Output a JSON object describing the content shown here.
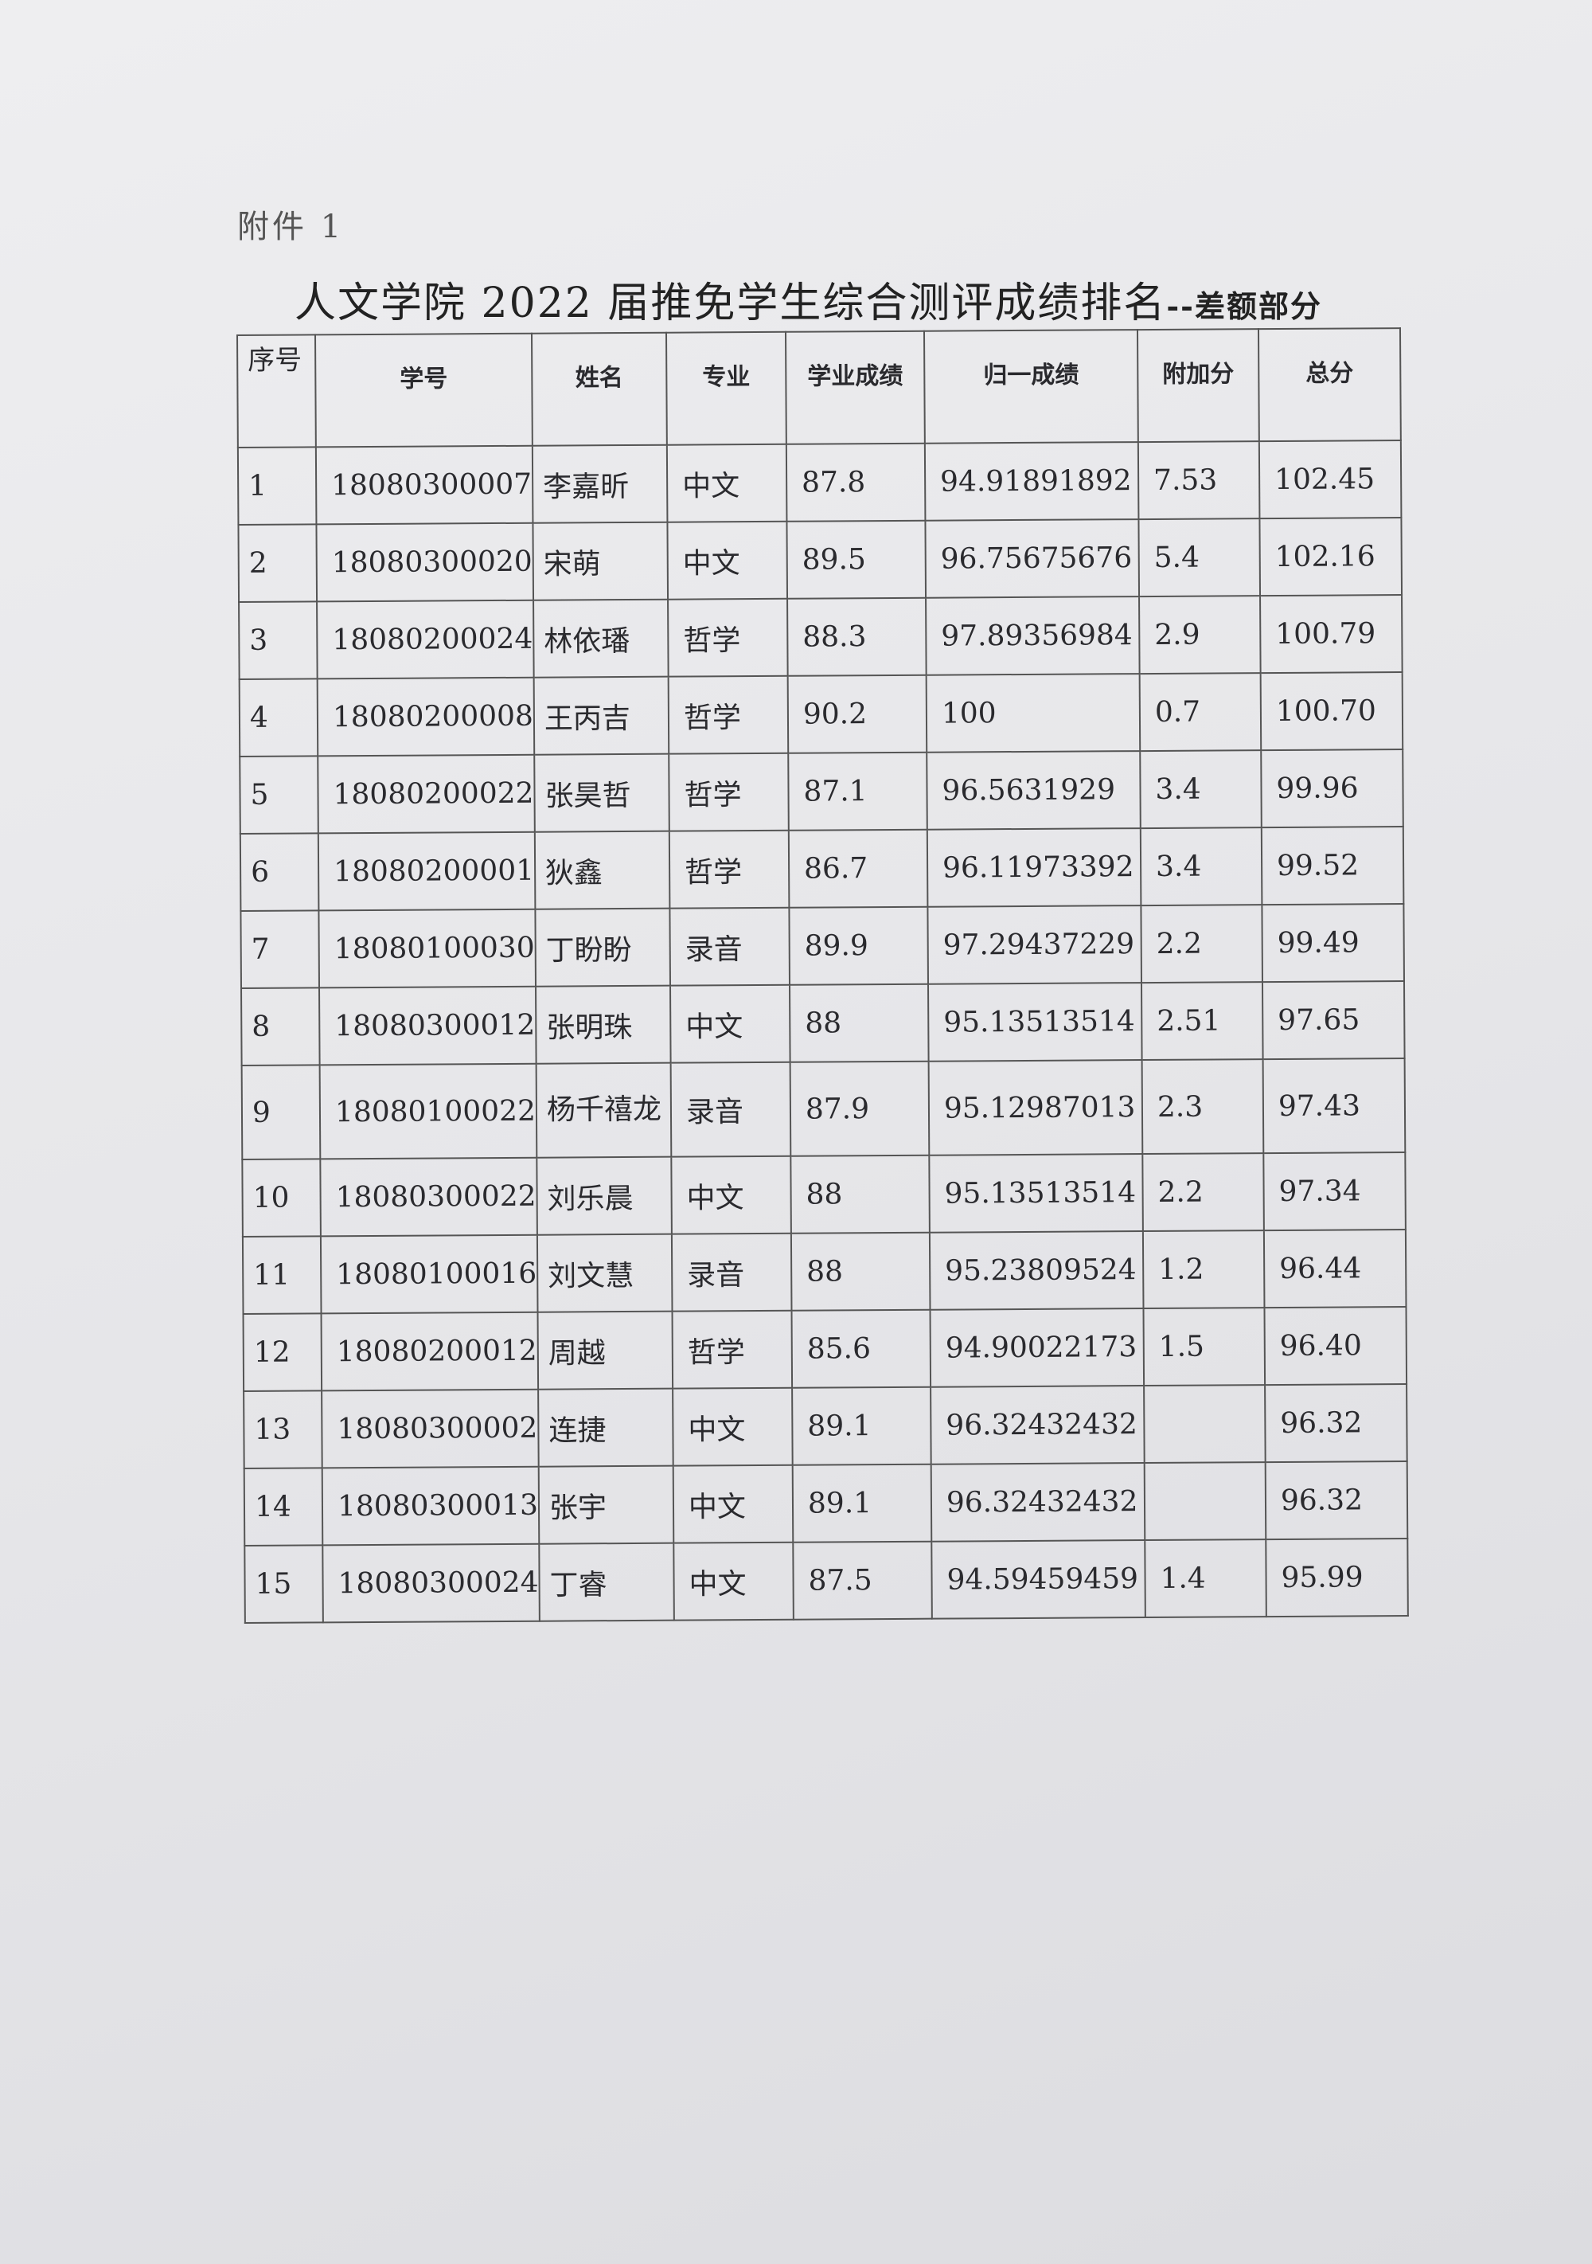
{
  "attachment_label": "附件 1",
  "title": "人文学院 2022 届推免学生综合测评成绩排名",
  "subtitle": "--差额部分",
  "table": {
    "headers": [
      "序号",
      "学号",
      "姓名",
      "专业",
      "学业成绩",
      "归一成绩",
      "附加分",
      "总分"
    ],
    "rows": [
      [
        "1",
        "18080300007",
        "李嘉昕",
        "中文",
        "87.8",
        "94.91891892",
        "7.53",
        "102.45"
      ],
      [
        "2",
        "18080300020",
        "宋萌",
        "中文",
        "89.5",
        "96.75675676",
        "5.4",
        "102.16"
      ],
      [
        "3",
        "18080200024",
        "林依璠",
        "哲学",
        "88.3",
        "97.89356984",
        "2.9",
        "100.79"
      ],
      [
        "4",
        "18080200008",
        "王丙吉",
        "哲学",
        "90.2",
        "100",
        "0.7",
        "100.70"
      ],
      [
        "5",
        "18080200022",
        "张昊哲",
        "哲学",
        "87.1",
        "96.5631929",
        "3.4",
        "99.96"
      ],
      [
        "6",
        "18080200001",
        "狄鑫",
        "哲学",
        "86.7",
        "96.11973392",
        "3.4",
        "99.52"
      ],
      [
        "7",
        "18080100030",
        "丁盼盼",
        "录音",
        "89.9",
        "97.29437229",
        "2.2",
        "99.49"
      ],
      [
        "8",
        "18080300012",
        "张明珠",
        "中文",
        "88",
        "95.13513514",
        "2.51",
        "97.65"
      ],
      [
        "9",
        "18080100022",
        "杨千禧龙",
        "录音",
        "87.9",
        "95.12987013",
        "2.3",
        "97.43"
      ],
      [
        "10",
        "18080300022",
        "刘乐晨",
        "中文",
        "88",
        "95.13513514",
        "2.2",
        "97.34"
      ],
      [
        "11",
        "18080100016",
        "刘文慧",
        "录音",
        "88",
        "95.23809524",
        "1.2",
        "96.44"
      ],
      [
        "12",
        "18080200012",
        "周越",
        "哲学",
        "85.6",
        "94.90022173",
        "1.5",
        "96.40"
      ],
      [
        "13",
        "18080300002",
        "连捷",
        "中文",
        "89.1",
        "96.32432432",
        "",
        "96.32"
      ],
      [
        "14",
        "18080300013",
        "张宇",
        "中文",
        "89.1",
        "96.32432432",
        "",
        "96.32"
      ],
      [
        "15",
        "18080300024",
        "丁睿",
        "中文",
        "87.5",
        "94.59459459",
        "1.4",
        "95.99"
      ]
    ]
  }
}
